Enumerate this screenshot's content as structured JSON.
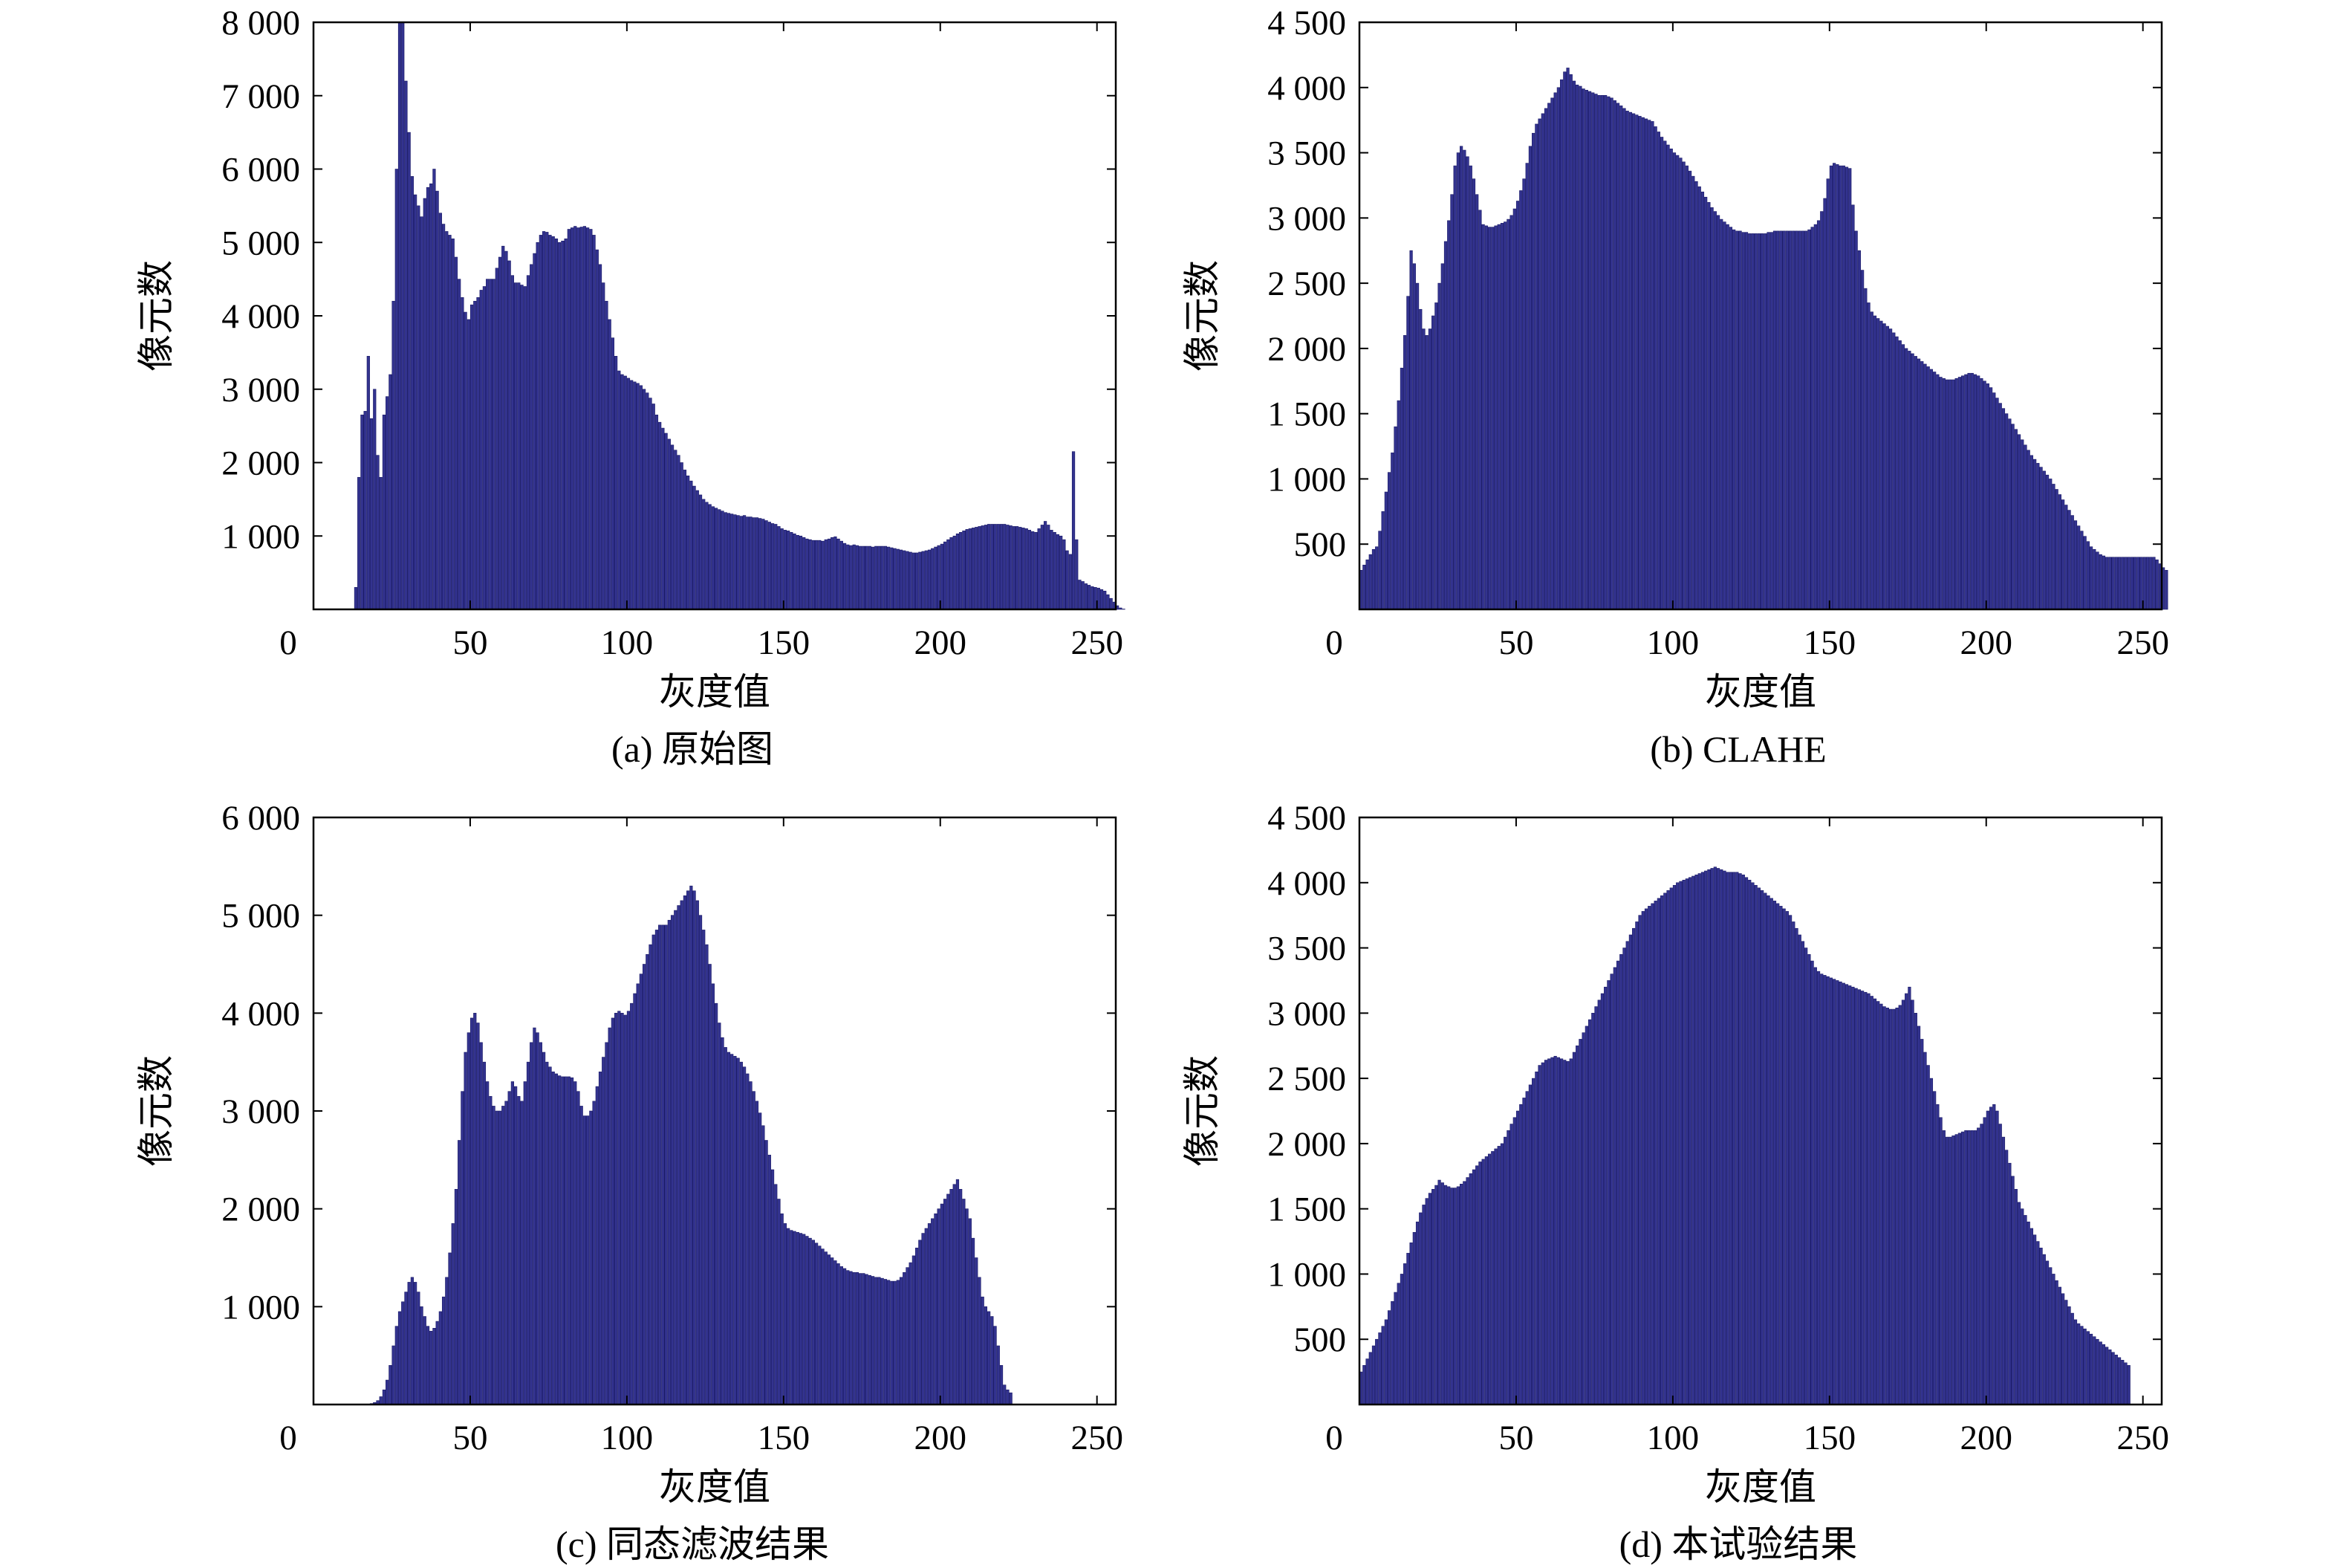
{
  "figure": {
    "bar_color": "#33338f",
    "bar_edge_color": "#1a1a66",
    "axis_color": "#000000"
  },
  "chart_data": [
    {
      "id": "a",
      "type": "bar",
      "caption": "(a) 原始图",
      "xlabel": "灰度值",
      "ylabel": "像元数",
      "xlim": [
        0,
        256
      ],
      "ylim": [
        0,
        8000
      ],
      "xticks": [
        0,
        50,
        100,
        150,
        200,
        250
      ],
      "yticks": [
        1000,
        2000,
        3000,
        4000,
        5000,
        6000,
        7000,
        8000
      ],
      "ytick_labels": [
        "1 000",
        "2 000",
        "3 000",
        "4 000",
        "5 000",
        "6 000",
        "7 000",
        "8 000"
      ],
      "x": "bins 0..255 (one bar per gray level)",
      "values": [
        0,
        0,
        0,
        0,
        0,
        0,
        0,
        0,
        0,
        0,
        0,
        0,
        0,
        300,
        1800,
        2650,
        2700,
        3450,
        2600,
        3000,
        2100,
        1800,
        2650,
        2900,
        3200,
        4200,
        6000,
        8000,
        8400,
        7200,
        6500,
        5900,
        5650,
        5500,
        5350,
        5600,
        5750,
        5800,
        6000,
        5700,
        5400,
        5250,
        5150,
        5100,
        5050,
        4800,
        4500,
        4250,
        4050,
        3950,
        4150,
        4200,
        4250,
        4350,
        4400,
        4500,
        4500,
        4500,
        4650,
        4800,
        4950,
        4880,
        4750,
        4550,
        4450,
        4450,
        4420,
        4400,
        4550,
        4700,
        4850,
        5000,
        5100,
        5150,
        5140,
        5100,
        5080,
        5050,
        5000,
        5020,
        5050,
        5180,
        5200,
        5220,
        5200,
        5210,
        5220,
        5200,
        5180,
        5100,
        4900,
        4700,
        4450,
        4200,
        3950,
        3700,
        3450,
        3250,
        3200,
        3180,
        3150,
        3120,
        3100,
        3080,
        3050,
        3000,
        2950,
        2880,
        2800,
        2650,
        2550,
        2470,
        2400,
        2320,
        2240,
        2170,
        2100,
        2000,
        1900,
        1820,
        1750,
        1680,
        1620,
        1560,
        1500,
        1460,
        1430,
        1400,
        1380,
        1360,
        1340,
        1320,
        1310,
        1300,
        1290,
        1280,
        1270,
        1280,
        1260,
        1260,
        1250,
        1250,
        1240,
        1230,
        1210,
        1190,
        1170,
        1160,
        1130,
        1100,
        1080,
        1070,
        1050,
        1030,
        1010,
        1000,
        980,
        960,
        950,
        940,
        940,
        940,
        930,
        950,
        960,
        980,
        990,
        960,
        930,
        900,
        880,
        870,
        880,
        870,
        860,
        860,
        860,
        860,
        850,
        860,
        860,
        860,
        860,
        850,
        840,
        830,
        820,
        810,
        800,
        790,
        780,
        770,
        770,
        780,
        790,
        800,
        810,
        830,
        850,
        870,
        890,
        920,
        950,
        980,
        1000,
        1030,
        1050,
        1070,
        1090,
        1100,
        1110,
        1120,
        1130,
        1140,
        1150,
        1160,
        1160,
        1160,
        1160,
        1160,
        1160,
        1150,
        1140,
        1130,
        1130,
        1120,
        1110,
        1100,
        1080,
        1060,
        1050,
        1100,
        1150,
        1200,
        1150,
        1080,
        1050,
        1020,
        1000,
        950,
        800,
        750,
        2150,
        950,
        400,
        380,
        350,
        330,
        310,
        300,
        290,
        270,
        250,
        200,
        150,
        100,
        50,
        20,
        5,
        0,
        0,
        0
      ]
    },
    {
      "id": "b",
      "type": "bar",
      "caption": "(b) CLAHE",
      "xlabel": "灰度值",
      "ylabel": "像元数",
      "xlim": [
        0,
        256
      ],
      "ylim": [
        0,
        4500
      ],
      "xticks": [
        0,
        50,
        100,
        150,
        200,
        250
      ],
      "yticks": [
        500,
        1000,
        1500,
        2000,
        2500,
        3000,
        3500,
        4000,
        4500
      ],
      "ytick_labels": [
        "500",
        "1 000",
        "1 500",
        "2 000",
        "2 500",
        "3 000",
        "3 500",
        "4 000",
        "4 500"
      ],
      "x": "bins 0..255",
      "values": [
        300,
        340,
        380,
        420,
        460,
        480,
        600,
        750,
        900,
        1050,
        1200,
        1400,
        1600,
        1850,
        2100,
        2400,
        2750,
        2650,
        2500,
        2300,
        2150,
        2100,
        2150,
        2250,
        2350,
        2500,
        2650,
        2820,
        2980,
        3180,
        3400,
        3500,
        3550,
        3520,
        3470,
        3400,
        3300,
        3180,
        3060,
        2950,
        2940,
        2930,
        2930,
        2940,
        2950,
        2960,
        2970,
        2990,
        3020,
        3070,
        3130,
        3210,
        3300,
        3420,
        3550,
        3650,
        3720,
        3760,
        3800,
        3840,
        3880,
        3920,
        3960,
        4000,
        4060,
        4120,
        4150,
        4100,
        4050,
        4020,
        4010,
        3990,
        3980,
        3970,
        3960,
        3950,
        3940,
        3940,
        3940,
        3930,
        3920,
        3900,
        3880,
        3860,
        3840,
        3820,
        3810,
        3800,
        3790,
        3780,
        3770,
        3760,
        3750,
        3740,
        3700,
        3660,
        3620,
        3590,
        3560,
        3530,
        3500,
        3480,
        3460,
        3430,
        3400,
        3360,
        3320,
        3280,
        3240,
        3200,
        3160,
        3120,
        3080,
        3050,
        3020,
        2990,
        2970,
        2950,
        2930,
        2910,
        2900,
        2900,
        2890,
        2890,
        2880,
        2880,
        2880,
        2880,
        2880,
        2880,
        2890,
        2890,
        2900,
        2900,
        2900,
        2900,
        2900,
        2900,
        2900,
        2900,
        2900,
        2900,
        2900,
        2910,
        2930,
        2950,
        2980,
        3050,
        3150,
        3300,
        3400,
        3420,
        3410,
        3400,
        3400,
        3390,
        3380,
        3100,
        2900,
        2750,
        2600,
        2460,
        2350,
        2280,
        2250,
        2230,
        2210,
        2190,
        2170,
        2150,
        2120,
        2090,
        2060,
        2030,
        2000,
        1980,
        1960,
        1940,
        1920,
        1900,
        1880,
        1860,
        1840,
        1820,
        1800,
        1780,
        1770,
        1760,
        1760,
        1760,
        1770,
        1780,
        1790,
        1800,
        1810,
        1810,
        1800,
        1790,
        1770,
        1750,
        1730,
        1700,
        1660,
        1620,
        1580,
        1540,
        1500,
        1460,
        1420,
        1380,
        1340,
        1300,
        1260,
        1220,
        1180,
        1150,
        1120,
        1090,
        1060,
        1030,
        1000,
        960,
        920,
        880,
        840,
        800,
        760,
        720,
        680,
        640,
        600,
        560,
        520,
        480,
        460,
        440,
        420,
        410,
        400,
        400,
        400,
        400,
        400,
        400,
        400,
        400,
        400,
        400,
        400,
        400,
        400,
        400,
        400,
        400,
        380,
        350,
        320,
        300
      ]
    },
    {
      "id": "c",
      "type": "bar",
      "caption": "(c) 同态滤波结果",
      "xlabel": "灰度值",
      "ylabel": "像元数",
      "xlim": [
        0,
        256
      ],
      "ylim": [
        0,
        6000
      ],
      "xticks": [
        0,
        50,
        100,
        150,
        200,
        250
      ],
      "yticks": [
        1000,
        2000,
        3000,
        4000,
        5000,
        6000
      ],
      "ytick_labels": [
        "1 000",
        "2 000",
        "3 000",
        "4 000",
        "5 000",
        "6 000"
      ],
      "x": "bins 0..255",
      "values": [
        0,
        0,
        0,
        0,
        0,
        0,
        0,
        0,
        0,
        0,
        0,
        0,
        0,
        0,
        0,
        0,
        0,
        5,
        10,
        20,
        40,
        80,
        150,
        250,
        400,
        600,
        800,
        950,
        1050,
        1150,
        1250,
        1300,
        1250,
        1150,
        1000,
        900,
        800,
        750,
        780,
        850,
        950,
        1100,
        1300,
        1550,
        1850,
        2200,
        2700,
        3200,
        3600,
        3800,
        3950,
        4000,
        3900,
        3700,
        3500,
        3300,
        3150,
        3050,
        3000,
        3000,
        3050,
        3100,
        3200,
        3300,
        3250,
        3150,
        3100,
        3300,
        3500,
        3700,
        3850,
        3800,
        3700,
        3600,
        3500,
        3450,
        3400,
        3380,
        3360,
        3350,
        3350,
        3350,
        3340,
        3300,
        3200,
        3050,
        2950,
        2950,
        3000,
        3100,
        3250,
        3400,
        3550,
        3700,
        3850,
        3950,
        4000,
        4020,
        4000,
        3980,
        4020,
        4100,
        4200,
        4300,
        4400,
        4500,
        4600,
        4700,
        4800,
        4850,
        4900,
        4900,
        4900,
        4950,
        5000,
        5050,
        5100,
        5150,
        5200,
        5250,
        5300,
        5250,
        5150,
        5000,
        4850,
        4700,
        4500,
        4300,
        4100,
        3900,
        3750,
        3650,
        3600,
        3580,
        3560,
        3540,
        3500,
        3450,
        3380,
        3300,
        3200,
        3100,
        2980,
        2850,
        2700,
        2550,
        2400,
        2250,
        2100,
        1950,
        1850,
        1800,
        1780,
        1770,
        1760,
        1750,
        1740,
        1720,
        1700,
        1680,
        1650,
        1620,
        1590,
        1560,
        1530,
        1500,
        1470,
        1440,
        1410,
        1390,
        1370,
        1360,
        1350,
        1350,
        1340,
        1340,
        1330,
        1320,
        1310,
        1300,
        1300,
        1290,
        1280,
        1270,
        1260,
        1260,
        1270,
        1300,
        1350,
        1400,
        1450,
        1520,
        1600,
        1680,
        1750,
        1800,
        1850,
        1900,
        1950,
        2000,
        2050,
        2100,
        2150,
        2200,
        2250,
        2300,
        2200,
        2100,
        2000,
        1900,
        1700,
        1500,
        1300,
        1100,
        1000,
        950,
        900,
        800,
        600,
        400,
        200,
        150,
        120
      ]
    },
    {
      "id": "d",
      "type": "bar",
      "caption": "(d) 本试验结果",
      "xlabel": "灰度值",
      "ylabel": "像元数",
      "xlim": [
        0,
        256
      ],
      "ylim": [
        0,
        4500
      ],
      "xticks": [
        0,
        50,
        100,
        150,
        200,
        250
      ],
      "yticks": [
        500,
        1000,
        1500,
        2000,
        2500,
        3000,
        3500,
        4000,
        4500
      ],
      "ytick_labels": [
        "500",
        "1 000",
        "1 500",
        "2 000",
        "2 500",
        "3 000",
        "3 500",
        "4 000",
        "4 500"
      ],
      "x": "bins 0..255",
      "values": [
        250,
        300,
        350,
        400,
        450,
        500,
        550,
        600,
        650,
        720,
        790,
        860,
        930,
        1000,
        1080,
        1160,
        1240,
        1320,
        1400,
        1470,
        1530,
        1580,
        1620,
        1650,
        1680,
        1720,
        1700,
        1680,
        1670,
        1660,
        1660,
        1670,
        1690,
        1710,
        1740,
        1770,
        1800,
        1830,
        1860,
        1880,
        1900,
        1920,
        1940,
        1960,
        1980,
        2000,
        2050,
        2100,
        2150,
        2200,
        2250,
        2300,
        2350,
        2400,
        2450,
        2500,
        2550,
        2600,
        2620,
        2640,
        2650,
        2660,
        2670,
        2660,
        2650,
        2640,
        2630,
        2650,
        2700,
        2750,
        2800,
        2850,
        2900,
        2950,
        3000,
        3050,
        3100,
        3150,
        3200,
        3250,
        3300,
        3350,
        3400,
        3450,
        3500,
        3550,
        3600,
        3650,
        3700,
        3750,
        3780,
        3800,
        3820,
        3840,
        3860,
        3880,
        3900,
        3920,
        3940,
        3960,
        3980,
        4000,
        4010,
        4020,
        4030,
        4040,
        4050,
        4060,
        4070,
        4080,
        4090,
        4100,
        4110,
        4120,
        4110,
        4100,
        4090,
        4080,
        4080,
        4080,
        4080,
        4070,
        4060,
        4040,
        4020,
        4000,
        3980,
        3960,
        3940,
        3920,
        3900,
        3880,
        3860,
        3840,
        3820,
        3800,
        3780,
        3750,
        3700,
        3650,
        3600,
        3550,
        3500,
        3450,
        3400,
        3350,
        3320,
        3300,
        3290,
        3280,
        3270,
        3260,
        3250,
        3240,
        3230,
        3220,
        3210,
        3200,
        3190,
        3180,
        3170,
        3160,
        3150,
        3130,
        3110,
        3090,
        3070,
        3050,
        3040,
        3030,
        3030,
        3040,
        3060,
        3100,
        3150,
        3200,
        3100,
        3000,
        2900,
        2800,
        2700,
        2600,
        2500,
        2400,
        2300,
        2200,
        2100,
        2050,
        2050,
        2060,
        2070,
        2080,
        2090,
        2100,
        2100,
        2100,
        2100,
        2120,
        2150,
        2200,
        2250,
        2280,
        2300,
        2250,
        2150,
        2050,
        1950,
        1850,
        1750,
        1650,
        1550,
        1500,
        1450,
        1400,
        1350,
        1300,
        1250,
        1200,
        1150,
        1100,
        1050,
        1000,
        950,
        900,
        850,
        800,
        750,
        700,
        650,
        620,
        600,
        580,
        560,
        540,
        520,
        500,
        480,
        460,
        440,
        420,
        400,
        380,
        360,
        340,
        320,
        300
      ]
    }
  ]
}
